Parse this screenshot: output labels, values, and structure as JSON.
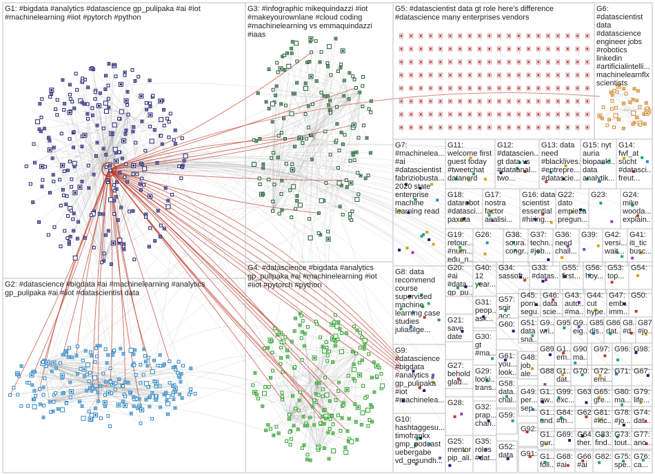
{
  "groups": [
    {
      "id": "G1",
      "lines": [
        "G1: #bigdata #analytics #datascience gp_pulipaka #ai #iot",
        "#machinelearning #iiot #pytorch #python"
      ]
    },
    {
      "id": "G2",
      "lines": [
        "G2: #datascience #bigdata #ai #machinelearning #analytics",
        "gp_pulipaka #ai #iiot #datascientist data"
      ]
    },
    {
      "id": "G3",
      "lines": [
        "G3: #infographic mikequindazzi #iot",
        "#makeyourownlane #cloud coding",
        "#machinelearning vs emmaquindazzi",
        "#iaas"
      ]
    },
    {
      "id": "G4",
      "lines": [
        "G4: #datascience #bigdata #analytics",
        "gp_pulipaka #ai #machinelearning #iot",
        "#iiot #pytorch #python"
      ]
    },
    {
      "id": "G5",
      "lines": [
        "G5: #datascientist data gt role here's difference",
        "#datascience many enterprises vendors"
      ]
    },
    {
      "id": "G6",
      "lines": [
        "G6:",
        "#datascientist",
        "data",
        "#datascience",
        "engineer jobs",
        "#robotics",
        "linkedin",
        "#artificialintelli...",
        "machinelearnflx",
        "scientists"
      ]
    },
    {
      "id": "G7",
      "lines": [
        "G7:",
        "#machinelea...",
        "#ai",
        "#datascientist",
        "fabriziobusta...",
        "2020 state",
        "enterprise",
        "machine",
        "learning read"
      ]
    },
    {
      "id": "G8",
      "lines": [
        "G8: data",
        "recommend",
        "course",
        "supervised",
        "machine",
        "learning case",
        "studies",
        "juliasilge..."
      ]
    },
    {
      "id": "G9",
      "lines": [
        "G9:",
        "#datascience",
        "#bigdata",
        "#analytics",
        "gp_pulipaka",
        "#iot",
        "#machinelea..."
      ]
    },
    {
      "id": "G10",
      "lines": [
        "G10:",
        "hashtaggesu...",
        "timofrankx",
        "gmp_podcast",
        "uebergabe",
        "vd_gesundh..."
      ]
    },
    {
      "id": "G11",
      "lines": [
        "G11:",
        "welcome first",
        "guest today",
        "#tweetchat",
        "datanerd"
      ]
    },
    {
      "id": "G12",
      "lines": [
        "G12:",
        "#datascien...",
        "gt data vs",
        "#dataanal...",
        "two..."
      ]
    },
    {
      "id": "G13",
      "lines": [
        "G13: data",
        "need",
        "#blacklives...",
        "#entrepre...",
        "#datascie..."
      ]
    },
    {
      "id": "G15",
      "lines": [
        "G15: nyt",
        "auria",
        "biopanki...",
        "data",
        "analytik..."
      ]
    },
    {
      "id": "G14",
      "lines": [
        "G14:",
        "fwf_at",
        "sucht",
        "#datasci...",
        "freut..."
      ]
    },
    {
      "id": "G16",
      "lines": [
        "G16: data",
        "scientist",
        "essential",
        "#hiring..."
      ]
    },
    {
      "id": "G17",
      "lines": [
        "G17:",
        "nostra",
        "factor",
        "analisi..."
      ]
    },
    {
      "id": "G18",
      "lines": [
        "G18:",
        "datarobot",
        "#datasci...",
        "paxata"
      ]
    },
    {
      "id": "G22",
      "lines": [
        "G22:",
        "dato",
        "empieza",
        "pregun..."
      ]
    },
    {
      "id": "G23",
      "lines": [
        "G23:"
      ]
    },
    {
      "id": "G24",
      "lines": [
        "G24:",
        "mike",
        "wooda...",
        "explain..."
      ]
    },
    {
      "id": "G19",
      "lines": [
        "G19:",
        "retour...",
        "#num...",
        "edu_n..."
      ]
    },
    {
      "id": "G26",
      "lines": [
        "G26:"
      ]
    },
    {
      "id": "G38",
      "lines": [
        "G38:",
        "soura...",
        "congr..."
      ]
    },
    {
      "id": "G37",
      "lines": [
        "G37:",
        "techn...",
        "#job..."
      ]
    },
    {
      "id": "G36",
      "lines": [
        "G36:",
        "need",
        "chall..."
      ]
    },
    {
      "id": "G39",
      "lines": [
        "G39:"
      ]
    },
    {
      "id": "G42",
      "lines": [
        "G42:",
        "versi...",
        "wait..."
      ]
    },
    {
      "id": "G41",
      "lines": [
        "G41:",
        "iti_tic",
        "busc..."
      ]
    },
    {
      "id": "G20",
      "lines": [
        "G20:",
        "#ai",
        "#data...",
        "gp_pu...",
        "#mac..."
      ]
    },
    {
      "id": "G40",
      "lines": [
        "G40:",
        "12",
        "year..."
      ]
    },
    {
      "id": "G34",
      "lines": [
        "G34:",
        "sassoft..."
      ]
    },
    {
      "id": "G33",
      "lines": [
        "G33:",
        "#datas..."
      ]
    },
    {
      "id": "G55",
      "lines": [
        "G55:",
        "first..."
      ]
    },
    {
      "id": "G56",
      "lines": [
        "G56:",
        "hoy..."
      ]
    },
    {
      "id": "G53",
      "lines": [
        "G53:",
        "top..."
      ]
    },
    {
      "id": "G54",
      "lines": [
        "G54:"
      ]
    },
    {
      "id": "G31",
      "lines": [
        "G31:",
        "peop...",
        "ask..."
      ]
    },
    {
      "id": "G57",
      "lines": [
        "G57:",
        "soir",
        "acc..."
      ]
    },
    {
      "id": "G45",
      "lines": [
        "G45:",
        "porn...",
        "segu..."
      ]
    },
    {
      "id": "G46",
      "lines": [
        "G46:",
        "data",
        "scie..."
      ]
    },
    {
      "id": "G43",
      "lines": [
        "G43:",
        "auto...",
        "#ma..."
      ]
    },
    {
      "id": "G44",
      "lines": [
        "G44:",
        "cut",
        "hype..."
      ]
    },
    {
      "id": "G47",
      "lines": [
        "G47:",
        "emb...",
        "imm..."
      ]
    },
    {
      "id": "G50",
      "lines": [
        "G50:"
      ]
    },
    {
      "id": "G21",
      "lines": [
        "G21:",
        "save",
        "date",
        "êtes..."
      ]
    },
    {
      "id": "G60",
      "lines": [
        "G60:"
      ]
    },
    {
      "id": "G51",
      "lines": [
        "G51:",
        "data",
        "sna..."
      ]
    },
    {
      "id": "G9b",
      "lines": [
        "G9...",
        "wri..."
      ]
    },
    {
      "id": "G95",
      "lines": [
        "G95:"
      ]
    },
    {
      "id": "G9c",
      "lines": [
        "G9...",
        "eig..."
      ]
    },
    {
      "id": "G85",
      "lines": [
        "G85:",
        "dis..."
      ]
    },
    {
      "id": "G86",
      "lines": [
        "G86:",
        "dat..."
      ]
    },
    {
      "id": "G8x",
      "lines": [
        "G8...",
        "#d..."
      ]
    },
    {
      "id": "G87",
      "lines": [
        "G87:",
        "#jo..."
      ]
    },
    {
      "id": "G30",
      "lines": [
        "G30:",
        "gt",
        "#ma..."
      ]
    },
    {
      "id": "G89",
      "lines": [
        "G89:"
      ]
    },
    {
      "id": "G1x",
      "lines": [
        "G1...",
        "em..."
      ]
    },
    {
      "id": "G90",
      "lines": [
        "G90:",
        "ma..."
      ]
    },
    {
      "id": "G97",
      "lines": [
        "G97:"
      ]
    },
    {
      "id": "G96",
      "lines": [
        "G96:"
      ]
    },
    {
      "id": "G98",
      "lines": [
        "G98:"
      ]
    },
    {
      "id": "G27",
      "lines": [
        "G27:",
        "behold",
        "glad..."
      ]
    },
    {
      "id": "G61",
      "lines": [
        "G61:",
        "you...",
        "look..."
      ]
    },
    {
      "id": "G48",
      "lines": [
        "G48:",
        "job",
        "ale..."
      ]
    },
    {
      "id": "G88",
      "lines": [
        "G88:"
      ]
    },
    {
      "id": "G1y",
      "lines": [
        "G1...",
        "dat..."
      ]
    },
    {
      "id": "G70",
      "lines": [
        "G70:"
      ]
    },
    {
      "id": "G72",
      "lines": [
        "G72:",
        "emi..."
      ]
    },
    {
      "id": "G71",
      "lines": [
        "G71:"
      ]
    },
    {
      "id": "G67",
      "lines": [
        "G67:"
      ]
    },
    {
      "id": "G29",
      "lines": [
        "G29:",
        "looki...",
        "trans..."
      ]
    },
    {
      "id": "G49",
      "lines": [
        "G49:",
        "per...",
        "sep..."
      ]
    },
    {
      "id": "G1z",
      "lines": [
        "G1...",
        "aw..."
      ]
    },
    {
      "id": "G99",
      "lines": [
        "G99:",
        "exc..."
      ]
    },
    {
      "id": "G63",
      "lines": [
        "G63:"
      ]
    },
    {
      "id": "G65",
      "lines": [
        "G65:",
        "gre..."
      ]
    },
    {
      "id": "G80",
      "lines": [
        "G80:",
        "ma..."
      ]
    },
    {
      "id": "G79",
      "lines": [
        "G79:",
        "life..."
      ]
    },
    {
      "id": "G28",
      "lines": [
        "G28:"
      ]
    },
    {
      "id": "G58",
      "lines": [
        "G58:",
        "data...",
        "chal..."
      ]
    },
    {
      "id": "G1w",
      "lines": [
        "G1...",
        "und..."
      ]
    },
    {
      "id": "G84",
      "lines": [
        "G84:",
        "#th..."
      ]
    },
    {
      "id": "G62",
      "lines": [
        "G62:"
      ]
    },
    {
      "id": "G81",
      "lines": [
        "G81:",
        "#kic..."
      ]
    },
    {
      "id": "G78",
      "lines": [
        "G78:",
        "#jo..."
      ]
    },
    {
      "id": "G74",
      "lines": [
        "G74:",
        "dat..."
      ]
    },
    {
      "id": "G32",
      "lines": [
        "G32:",
        "prap...",
        "chan..."
      ]
    },
    {
      "id": "G59",
      "lines": [
        "G59:"
      ]
    },
    {
      "id": "G92",
      "lines": [
        "G92:"
      ]
    },
    {
      "id": "G1v",
      "lines": [
        "G1...",
        "gur..."
      ]
    },
    {
      "id": "G69",
      "lines": [
        "G69:"
      ]
    },
    {
      "id": "G64",
      "lines": [
        "G64:",
        "ther..."
      ]
    },
    {
      "id": "G83",
      "lines": [
        "G83:",
        "find..."
      ]
    },
    {
      "id": "G73",
      "lines": [
        "G73:",
        "tout..."
      ]
    },
    {
      "id": "G77",
      "lines": [
        "G77:",
        "ano..."
      ]
    },
    {
      "id": "G25",
      "lines": [
        "G25:",
        "mentor",
        "pip_ali..."
      ]
    },
    {
      "id": "G35",
      "lines": [
        "G35:",
        "roles",
        "#dat..."
      ]
    },
    {
      "id": "G52",
      "lines": [
        "G52:",
        "data"
      ]
    },
    {
      "id": "G91",
      "lines": [
        "G91:"
      ]
    },
    {
      "id": "G1u",
      "lines": [
        "G1...",
        "foll..."
      ]
    },
    {
      "id": "G68",
      "lines": [
        "G68:",
        "#ai"
      ]
    },
    {
      "id": "G66",
      "lines": [
        "G66:",
        "#ai"
      ]
    },
    {
      "id": "G82",
      "lines": [
        "G82:"
      ]
    },
    {
      "id": "G75",
      "lines": [
        "G75:",
        "spe..."
      ]
    },
    {
      "id": "G76",
      "lines": [
        "G76:",
        "ca..."
      ]
    }
  ],
  "colors": {
    "G1": "#1e1e6e",
    "G2": "#2e86c1",
    "G3": "#1e5a32",
    "G4": "#2aa02a",
    "G5": "#a83232",
    "G6": "#d4862a",
    "other": "#5b6fa8",
    "edge": "#9a9a9a",
    "red_edge": "#c0392b",
    "box": "#bdbdbd"
  }
}
